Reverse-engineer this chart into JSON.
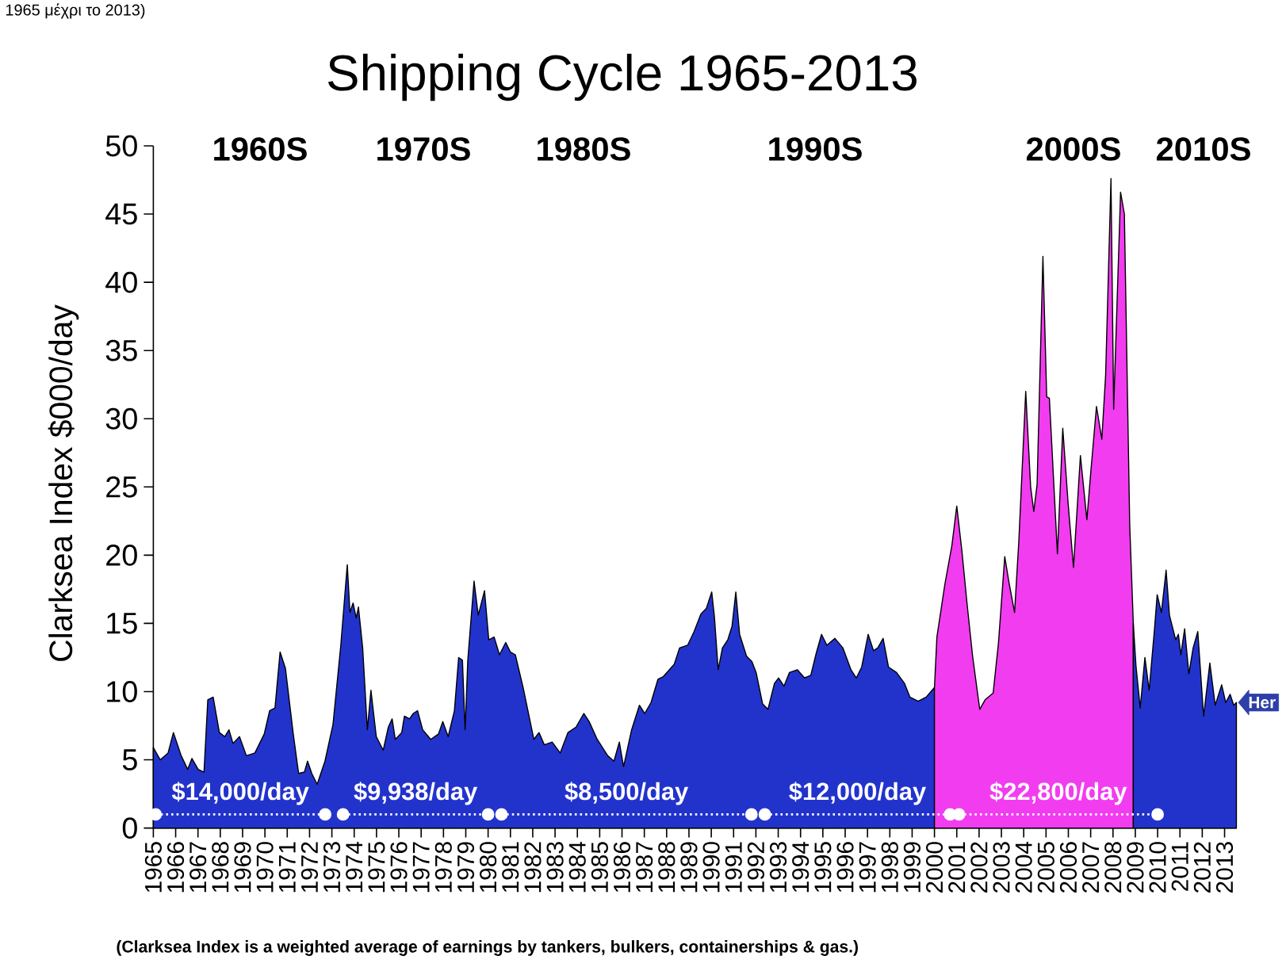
{
  "chart_data": {
    "type": "area",
    "title": "Shipping Cycle 1965-2013",
    "ylabel": "Clarksea Index $000/day",
    "xlim": [
      1965,
      2013.55
    ],
    "ylim": [
      0,
      50
    ],
    "xticks": [
      1965,
      1966,
      1967,
      1968,
      1969,
      1970,
      1971,
      1972,
      1973,
      1974,
      1975,
      1976,
      1977,
      1978,
      1979,
      1980,
      1981,
      1982,
      1983,
      1984,
      1985,
      1986,
      1987,
      1988,
      1989,
      1990,
      1991,
      1992,
      1993,
      1994,
      1995,
      1996,
      1997,
      1998,
      1999,
      2000,
      2001,
      2002,
      2003,
      2004,
      2005,
      2006,
      2007,
      2008,
      2009,
      2010,
      2011,
      2012,
      2013
    ],
    "yticks": [
      0,
      5,
      10,
      15,
      20,
      25,
      30,
      35,
      40,
      45,
      50
    ],
    "series": [
      {
        "color": "#2233cc",
        "x": [
          1965.0,
          1965.31,
          1965.66,
          1965.9,
          1966.25,
          1966.54,
          1966.73,
          1967.01,
          1967.27,
          1967.44,
          1967.68,
          1967.96,
          1968.2,
          1968.39,
          1968.57,
          1968.86,
          1969.17,
          1969.55,
          1969.97,
          1970.21,
          1970.45,
          1970.68,
          1970.92,
          1971.27,
          1971.51,
          1971.77,
          1971.91,
          1972.1,
          1972.34,
          1972.69,
          1973.05,
          1973.4,
          1973.69,
          1973.81,
          1973.95,
          1974.09,
          1974.19,
          1974.38,
          1974.59,
          1974.75,
          1974.99,
          1975.3,
          1975.53,
          1975.7,
          1975.84,
          1976.13,
          1976.25,
          1976.48,
          1976.65,
          1976.84,
          1977.07,
          1977.43,
          1977.78,
          1977.97,
          1978.21,
          1978.49,
          1978.68,
          1978.85,
          1978.97,
          1979.09,
          1979.37,
          1979.56,
          1979.84,
          1980.03,
          1980.27,
          1980.51,
          1980.79,
          1981.0,
          1981.22,
          1981.57,
          1982.05,
          1982.28,
          1982.52,
          1982.87,
          1983.23,
          1983.58,
          1983.94,
          1984.29,
          1984.53,
          1984.89,
          1985.36,
          1985.64,
          1985.88,
          1986.07,
          1986.43,
          1986.78,
          1987.02,
          1987.3,
          1987.61,
          1987.85,
          1988.34,
          1988.58,
          1988.94,
          1989.23,
          1989.54,
          1989.78,
          1990.02,
          1990.14,
          1990.31,
          1990.5,
          1990.74,
          1990.93,
          1991.1,
          1991.27,
          1991.58,
          1991.82,
          1992.01,
          1992.3,
          1992.54,
          1992.83,
          1993.02,
          1993.26,
          1993.5,
          1993.86,
          1994.18,
          1994.46,
          1994.7,
          1994.94,
          1995.18,
          1995.54,
          1995.9,
          1996.26,
          1996.5,
          1996.74,
          1997.03,
          1997.27,
          1997.46,
          1997.7,
          1997.94,
          1998.3,
          1998.66,
          1998.9,
          1999.27,
          1999.63,
          2000.0
        ],
        "values": [
          5.9,
          5.0,
          5.5,
          7.0,
          5.3,
          4.3,
          5.1,
          4.3,
          4.1,
          9.4,
          9.6,
          7.0,
          6.7,
          7.2,
          6.2,
          6.7,
          5.3,
          5.5,
          6.9,
          8.6,
          8.8,
          12.9,
          11.7,
          6.9,
          4.0,
          4.1,
          4.9,
          4.0,
          3.2,
          4.9,
          7.6,
          13.4,
          19.3,
          15.8,
          16.5,
          15.4,
          16.2,
          13.2,
          7.2,
          10.1,
          6.7,
          5.7,
          7.4,
          8.0,
          6.5,
          7.0,
          8.2,
          8.0,
          8.4,
          8.6,
          7.2,
          6.5,
          6.9,
          7.8,
          6.7,
          8.6,
          12.5,
          12.3,
          7.2,
          12.3,
          18.1,
          15.6,
          17.4,
          13.8,
          14.0,
          12.7,
          13.6,
          12.9,
          12.7,
          10.3,
          6.5,
          7.0,
          6.1,
          6.3,
          5.5,
          7.0,
          7.4,
          8.4,
          7.8,
          6.5,
          5.3,
          4.9,
          6.3,
          4.5,
          7.2,
          9.0,
          8.4,
          9.2,
          10.9,
          11.1,
          12.0,
          13.2,
          13.4,
          14.4,
          15.7,
          16.1,
          17.3,
          15.5,
          11.6,
          13.2,
          13.8,
          14.8,
          17.3,
          14.2,
          12.6,
          12.2,
          11.4,
          9.1,
          8.7,
          10.6,
          11.0,
          10.4,
          11.4,
          11.6,
          11.0,
          11.2,
          12.8,
          14.2,
          13.4,
          13.9,
          13.2,
          11.6,
          11.0,
          11.8,
          14.2,
          13.0,
          13.2,
          13.9,
          11.8,
          11.4,
          10.6,
          9.6,
          9.3,
          9.6,
          10.3
        ]
      },
      {
        "color": "#f23cf0",
        "x": [
          2000.0,
          2000.11,
          2000.47,
          2000.78,
          2001.0,
          2001.23,
          2001.47,
          2001.71,
          2002.03,
          2002.27,
          2002.63,
          2002.87,
          2003.15,
          2003.35,
          2003.59,
          2003.78,
          2004.09,
          2004.31,
          2004.45,
          2004.6,
          2004.86,
          2005.03,
          2005.15,
          2005.51,
          2005.75,
          2005.99,
          2006.23,
          2006.54,
          2006.83,
          2007.0,
          2007.26,
          2007.5,
          2007.67,
          2007.91,
          2008.03,
          2008.34,
          2008.51,
          2008.75,
          2008.91
        ],
        "values": [
          10.3,
          14.0,
          17.9,
          20.7,
          23.6,
          20.3,
          16.3,
          12.6,
          8.7,
          9.4,
          9.9,
          13.6,
          19.9,
          17.9,
          15.8,
          21.0,
          32.0,
          25.0,
          23.2,
          25.2,
          41.9,
          31.6,
          31.5,
          20.1,
          29.3,
          23.8,
          19.1,
          27.3,
          22.6,
          26.0,
          30.9,
          28.5,
          33.2,
          47.6,
          30.7,
          46.6,
          45.0,
          22.2,
          15.0
        ]
      },
      {
        "color": "#2233cc",
        "x": [
          2008.91,
          2009.03,
          2009.22,
          2009.43,
          2009.62,
          2009.86,
          2009.98,
          2010.17,
          2010.38,
          2010.53,
          2010.81,
          2010.93,
          2011.04,
          2011.21,
          2011.4,
          2011.59,
          2011.8,
          2012.06,
          2012.34,
          2012.58,
          2012.87,
          2013.05,
          2013.25,
          2013.41,
          2013.53
        ],
        "values": [
          15.0,
          11.9,
          8.8,
          12.5,
          10.1,
          14.6,
          17.1,
          15.8,
          18.9,
          15.6,
          13.8,
          14.2,
          12.7,
          14.6,
          11.3,
          13.2,
          14.4,
          8.2,
          12.1,
          9.0,
          10.5,
          9.2,
          9.8,
          9.0,
          9.2
        ]
      },
      {
        "type": "line",
        "name": "$14,000/day",
        "color": "#ffffff",
        "marker": "circle",
        "line_style": "dotted",
        "x": [
          1965.1,
          1972.7
        ],
        "values": [
          1,
          1
        ]
      },
      {
        "type": "line",
        "name": "$9,938/day",
        "color": "#ffffff",
        "marker": "circle",
        "line_style": "dotted",
        "x": [
          1973.5,
          1980.0
        ],
        "values": [
          1,
          1
        ]
      },
      {
        "type": "line",
        "name": "$8,500/day",
        "color": "#ffffff",
        "marker": "circle",
        "line_style": "dotted",
        "x": [
          1980.6,
          1991.8
        ],
        "values": [
          1,
          1
        ]
      },
      {
        "type": "line",
        "name": "$12,000/day",
        "color": "#ffffff",
        "marker": "circle",
        "line_style": "dotted",
        "x": [
          1992.4,
          2000.7
        ],
        "values": [
          1,
          1
        ]
      },
      {
        "type": "line",
        "name": "$22,800/day",
        "color": "#ffffff",
        "marker": "circle",
        "line_style": "dotted",
        "x": [
          2001.1,
          2010.0
        ],
        "values": [
          1,
          1
        ]
      }
    ],
    "annotations": [
      "1965 μέχρι το 2013)",
      "1960S",
      "1970S",
      "1980S",
      "1990S",
      "2000S",
      "2010S",
      {
        "text": "Her",
        "x": 2013.53,
        "y": 9.2
      },
      "(Clarksea Index is a weighted average of earnings by tankers, bulkers, containerships & gas.)"
    ]
  }
}
